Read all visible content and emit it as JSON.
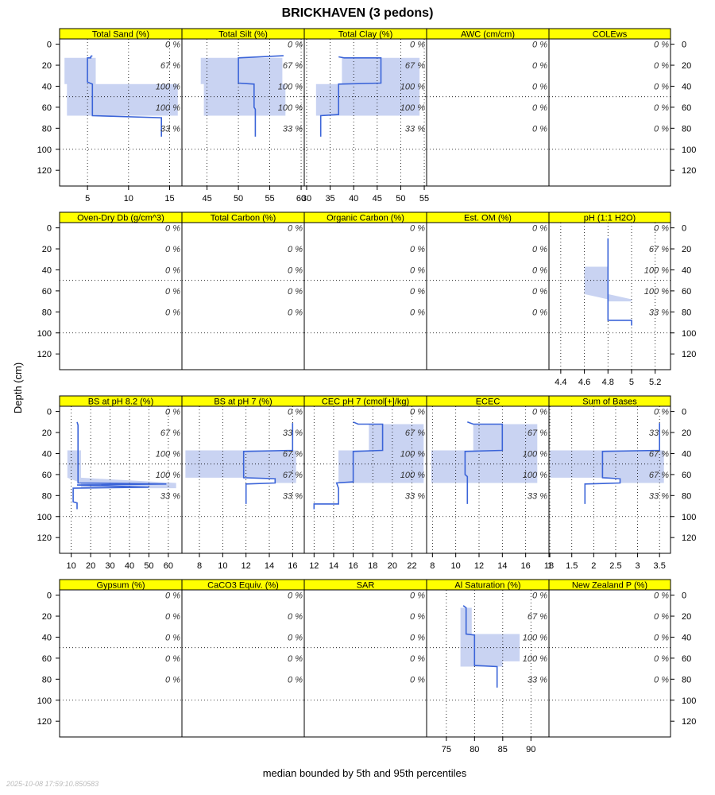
{
  "title": "BRICKHAVEN (3 pedons)",
  "ylabel": "Depth (cm)",
  "xlabel": "median bounded by 5th and 95th percentiles",
  "timestamp": "2025-10-08 17:59:10.850583",
  "colors": {
    "strip": "#ffff00",
    "band": "#c9d3f2",
    "line": "#3b64d8",
    "grid": "#000000"
  },
  "chart_data": {
    "type": "line",
    "depth_ticks": [
      0,
      20,
      40,
      60,
      80,
      100,
      120
    ],
    "depth_range": [
      -5,
      135
    ],
    "pct_depths": [
      0,
      20,
      40,
      60,
      80
    ],
    "reference_depths": [
      50,
      100
    ],
    "panels": [
      {
        "name": "Total Sand (%)",
        "xlim": [
          1.6,
          16.5
        ],
        "ticks": [
          5,
          10,
          15
        ],
        "pct": [
          "0 %",
          "67 %",
          "100 %",
          "100 %",
          "33 %"
        ],
        "median": [
          [
            5.6,
            11
          ],
          [
            5.4,
            11.6
          ],
          [
            5.4,
            13
          ],
          [
            5.0,
            13
          ],
          [
            5.0,
            36
          ],
          [
            5.6,
            38
          ],
          [
            5.6,
            68
          ],
          [
            14.0,
            70
          ],
          [
            14.0,
            88
          ]
        ],
        "band": [
          [
            13,
            2.2,
            6.0
          ],
          [
            38,
            2.2,
            6.0
          ],
          [
            38,
            2.5,
            16.0
          ],
          [
            68,
            2.5,
            16.0
          ]
        ]
      },
      {
        "name": "Total Silt (%)",
        "xlim": [
          41,
          60.5
        ],
        "ticks": [
          45,
          50,
          55,
          60
        ],
        "pct": [
          "0 %",
          "67 %",
          "100 %",
          "100 %",
          "33 %"
        ],
        "median": [
          [
            57.2,
            11
          ],
          [
            50,
            13
          ],
          [
            50,
            37
          ],
          [
            52.5,
            38
          ],
          [
            52.5,
            60
          ],
          [
            52.7,
            62
          ],
          [
            52.7,
            88
          ]
        ],
        "band": [
          [
            13,
            44,
            57
          ],
          [
            38,
            44,
            57
          ],
          [
            38,
            44.5,
            57.5
          ],
          [
            68,
            44.5,
            57.5
          ]
        ]
      },
      {
        "name": "Total Clay (%)",
        "xlim": [
          29.5,
          55.5
        ],
        "ticks": [
          30,
          35,
          40,
          45,
          50,
          55
        ],
        "pct": [
          "0 %",
          "67 %",
          "100 %",
          "100 %",
          "33 %"
        ],
        "median": [
          [
            36.8,
            12
          ],
          [
            38,
            13
          ],
          [
            45.8,
            13
          ],
          [
            45.8,
            37
          ],
          [
            36.8,
            38
          ],
          [
            36.8,
            67
          ],
          [
            33,
            68
          ],
          [
            33,
            88
          ]
        ],
        "band": [
          [
            13,
            37.5,
            54
          ],
          [
            38,
            37.5,
            54
          ],
          [
            38,
            32,
            54
          ],
          [
            68,
            32,
            54
          ]
        ]
      },
      {
        "name": "AWC (cm/cm)",
        "xlim": [
          0,
          1
        ],
        "ticks": [],
        "pct": [
          "0 %",
          "0 %",
          "0 %",
          "0 %",
          "0 %"
        ],
        "median": [],
        "band": []
      },
      {
        "name": "COLEws",
        "xlim": [
          0,
          1
        ],
        "ticks": [],
        "pct": [
          "0 %",
          "0 %",
          "0 %",
          "0 %",
          "0 %"
        ],
        "median": [],
        "band": []
      },
      {
        "name": "Oven-Dry Db (g/cm^3)",
        "xlim": [
          0,
          1
        ],
        "ticks": [],
        "pct": [
          "0 %",
          "0 %",
          "0 %",
          "0 %",
          "0 %"
        ],
        "median": [],
        "band": []
      },
      {
        "name": "Total Carbon (%)",
        "xlim": [
          0,
          1
        ],
        "ticks": [],
        "pct": [
          "0 %",
          "0 %",
          "0 %",
          "0 %",
          "0 %"
        ],
        "median": [],
        "band": []
      },
      {
        "name": "Organic Carbon (%)",
        "xlim": [
          0,
          1
        ],
        "ticks": [],
        "pct": [
          "0 %",
          "0 %",
          "0 %",
          "0 %",
          "0 %"
        ],
        "median": [],
        "band": []
      },
      {
        "name": "Est. OM (%)",
        "xlim": [
          0,
          1
        ],
        "ticks": [],
        "pct": [
          "0 %",
          "0 %",
          "0 %",
          "0 %",
          "0 %"
        ],
        "median": [],
        "band": []
      },
      {
        "name": "pH (1:1 H2O)",
        "xlim": [
          4.3,
          5.33
        ],
        "ticks": [
          4.4,
          4.6,
          4.8,
          5.0,
          5.2
        ],
        "pct": [
          "0 %",
          "67 %",
          "100 %",
          "100 %",
          "33 %"
        ],
        "median": [
          [
            4.8,
            10
          ],
          [
            4.8,
            88
          ],
          [
            5.0,
            88
          ],
          [
            5.0,
            93
          ]
        ],
        "band": [
          [
            37,
            4.6,
            4.8
          ],
          [
            63,
            4.6,
            4.8
          ],
          [
            68,
            4.8,
            5.0
          ],
          [
            70,
            4.8,
            5.0
          ]
        ]
      },
      {
        "name": "BS at pH 8.2 (%)",
        "xlim": [
          4,
          67
        ],
        "ticks": [
          10,
          20,
          30,
          40,
          50,
          60
        ],
        "pct": [
          "0 %",
          "67 %",
          "100 %",
          "100 %",
          "33 %"
        ],
        "median": [
          [
            13,
            10
          ],
          [
            13.5,
            13
          ],
          [
            13.5,
            68
          ],
          [
            59,
            69
          ],
          [
            13,
            70
          ],
          [
            50,
            72
          ],
          [
            11,
            73
          ],
          [
            11,
            86
          ],
          [
            13,
            87
          ],
          [
            13,
            93
          ]
        ],
        "band": [
          [
            37,
            8,
            15
          ],
          [
            63,
            8,
            15
          ],
          [
            68,
            15,
            64
          ],
          [
            73,
            15,
            64
          ]
        ]
      },
      {
        "name": "BS at pH 7 (%)",
        "xlim": [
          6.5,
          17
        ],
        "ticks": [
          8,
          10,
          12,
          14,
          16
        ],
        "pct": [
          "0 %",
          "33 %",
          "67 %",
          "67 %",
          "33 %"
        ],
        "median": [
          [
            16,
            11
          ],
          [
            16,
            37
          ],
          [
            11.8,
            38
          ],
          [
            11.8,
            63
          ],
          [
            14.5,
            64
          ],
          [
            14.5,
            68
          ],
          [
            12,
            69
          ],
          [
            12,
            88
          ]
        ],
        "band": [
          [
            37,
            6.8,
            16.3
          ],
          [
            63,
            6.8,
            16.3
          ],
          [
            63,
            14.5,
            16.3
          ],
          [
            68,
            14.5,
            16.3
          ]
        ]
      },
      {
        "name": "CEC pH 7 (cmol[+]/kg)",
        "xlim": [
          11,
          23.5
        ],
        "ticks": [
          12,
          14,
          16,
          18,
          20,
          22
        ],
        "pct": [
          "0 %",
          "67 %",
          "100 %",
          "100 %",
          "33 %"
        ],
        "median": [
          [
            16,
            10
          ],
          [
            16.5,
            12
          ],
          [
            19,
            12
          ],
          [
            19,
            37
          ],
          [
            16,
            38
          ],
          [
            16,
            67
          ],
          [
            14.3,
            68
          ],
          [
            14.5,
            73
          ],
          [
            14.5,
            88
          ],
          [
            12,
            88
          ],
          [
            12,
            93
          ]
        ],
        "band": [
          [
            12,
            17.6,
            23.2
          ],
          [
            37,
            17.6,
            23.2
          ],
          [
            37,
            14.5,
            23.2
          ],
          [
            68,
            14.5,
            23.2
          ]
        ]
      },
      {
        "name": "ECEC",
        "xlim": [
          7.5,
          18
        ],
        "ticks": [
          8,
          10,
          12,
          14,
          16,
          18
        ],
        "pct": [
          "0 %",
          "67 %",
          "100 %",
          "100 %",
          "33 %"
        ],
        "median": [
          [
            11,
            10
          ],
          [
            11.5,
            12
          ],
          [
            14,
            12
          ],
          [
            14,
            37
          ],
          [
            10.8,
            38
          ],
          [
            10.8,
            60
          ],
          [
            11,
            62
          ],
          [
            11,
            88
          ]
        ],
        "band": [
          [
            12,
            11.5,
            17
          ],
          [
            37,
            11.5,
            17
          ],
          [
            37,
            7.9,
            17
          ],
          [
            68,
            7.9,
            17
          ]
        ]
      },
      {
        "name": "Sum of Bases",
        "xlim": [
          0.98,
          3.75
        ],
        "ticks": [
          1.0,
          1.5,
          2.0,
          2.5,
          3.0,
          3.5
        ],
        "pct": [
          "0 %",
          "33 %",
          "67 %",
          "67 %",
          "33 %"
        ],
        "median": [
          [
            3.5,
            11
          ],
          [
            3.5,
            37
          ],
          [
            2.2,
            38
          ],
          [
            2.2,
            63
          ],
          [
            2.6,
            64
          ],
          [
            2.6,
            68
          ],
          [
            1.8,
            69
          ],
          [
            1.8,
            88
          ]
        ],
        "band": [
          [
            37,
            1.0,
            3.6
          ],
          [
            63,
            1.0,
            3.6
          ],
          [
            63,
            2.6,
            3.6
          ],
          [
            68,
            2.6,
            3.6
          ]
        ]
      },
      {
        "name": "Gypsum (%)",
        "xlim": [
          0,
          1
        ],
        "ticks": [],
        "pct": [
          "0 %",
          "0 %",
          "0 %",
          "0 %",
          "0 %"
        ],
        "median": [],
        "band": []
      },
      {
        "name": "CaCO3 Equiv. (%)",
        "xlim": [
          0,
          1
        ],
        "ticks": [],
        "pct": [
          "0 %",
          "0 %",
          "0 %",
          "0 %",
          "0 %"
        ],
        "median": [],
        "band": []
      },
      {
        "name": "SAR",
        "xlim": [
          0,
          1
        ],
        "ticks": [],
        "pct": [
          "0 %",
          "0 %",
          "0 %",
          "0 %",
          "0 %"
        ],
        "median": [],
        "band": []
      },
      {
        "name": "Al Saturation (%)",
        "xlim": [
          71.5,
          93.2
        ],
        "ticks": [
          75,
          80,
          85,
          90
        ],
        "pct": [
          "0 %",
          "67 %",
          "100 %",
          "100 %",
          "33 %"
        ],
        "median": [
          [
            78,
            10
          ],
          [
            78.5,
            12
          ],
          [
            78.5,
            37
          ],
          [
            80,
            38
          ],
          [
            80,
            67
          ],
          [
            84,
            68
          ],
          [
            84,
            88
          ]
        ],
        "band": [
          [
            12,
            77.5,
            79.5
          ],
          [
            37,
            77.5,
            79.5
          ],
          [
            37,
            77.5,
            88
          ],
          [
            63,
            77.5,
            88
          ],
          [
            63,
            77.5,
            85
          ],
          [
            68,
            77.5,
            85
          ]
        ]
      },
      {
        "name": "New Zealand P (%)",
        "xlim": [
          0,
          1
        ],
        "ticks": [],
        "pct": [
          "0 %",
          "0 %",
          "0 %",
          "0 %",
          "0 %"
        ],
        "median": [],
        "band": []
      }
    ]
  }
}
